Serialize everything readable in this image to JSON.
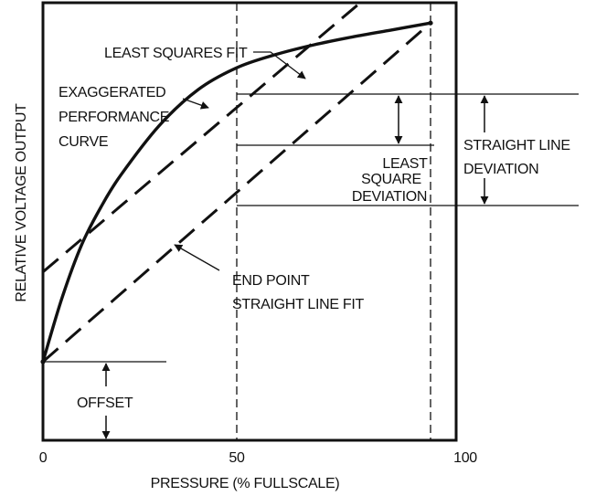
{
  "chart_data": {
    "type": "line",
    "title": "",
    "xlabel": "PRESSURE (% FULLSCALE)",
    "ylabel": "RELATIVE VOLTAGE OUTPUT",
    "xlim": [
      0,
      100
    ],
    "x_ticks": [
      "0",
      "50",
      "100"
    ],
    "grid": false,
    "series": [
      {
        "id": "performance",
        "style": "solid",
        "x": [
          0,
          5,
          10,
          15,
          20,
          30,
          40,
          50,
          60,
          70,
          80,
          90,
          100
        ],
        "y": [
          0.0,
          0.197,
          0.356,
          0.471,
          0.566,
          0.718,
          0.827,
          0.894,
          0.934,
          0.964,
          0.988,
          1.009,
          1.03
        ]
      },
      {
        "id": "least-squares-fit",
        "style": "dashed",
        "x": [
          0,
          100
        ],
        "y": [
          0.273,
          1.273
        ]
      },
      {
        "id": "end-point-fit",
        "style": "dashed",
        "x": [
          0,
          100
        ],
        "y": [
          0.0,
          1.03
        ]
      }
    ],
    "reference_lines": [
      {
        "id": "x-50",
        "axis": "x",
        "value": 50,
        "style": "dashed"
      },
      {
        "id": "x-full",
        "axis": "x",
        "value": 100,
        "style": "dashed"
      }
    ],
    "annotations": {
      "least_squares_fit": "LEAST SQUARES FIT",
      "performance_curve": [
        "EXAGGERATED",
        "PERFORMANCE",
        "CURVE"
      ],
      "least_square_deviation": [
        "LEAST",
        "SQUARE",
        "DEVIATION"
      ],
      "straight_line_deviation": [
        "STRAIGHT LINE",
        "DEVIATION"
      ],
      "end_point_fit": [
        "END POINT",
        "STRAIGHT LINE FIT"
      ],
      "offset": "OFFSET"
    }
  },
  "colors": {
    "ink": "#111111",
    "background": "#ffffff"
  }
}
